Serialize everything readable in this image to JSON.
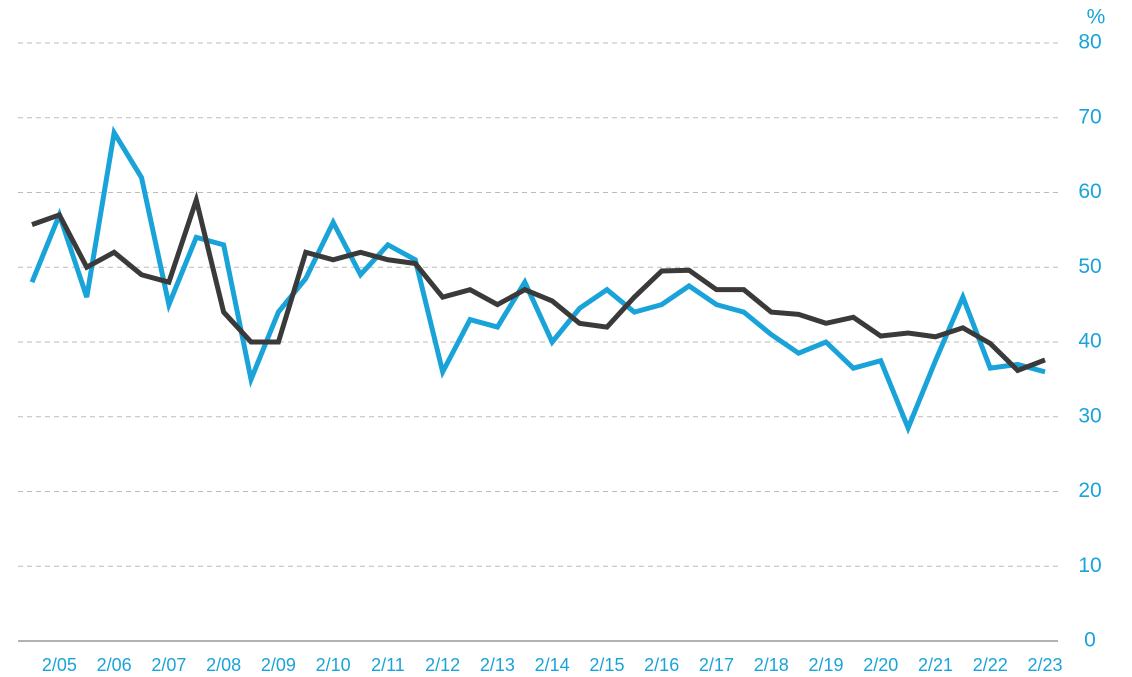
{
  "chart_data": {
    "type": "line",
    "y_unit": "%",
    "categories": [
      null,
      "2/05",
      null,
      "2/06",
      null,
      "2/07",
      null,
      "2/08",
      null,
      "2/09",
      null,
      "2/10",
      null,
      "2/11",
      null,
      "2/12",
      null,
      "2/13",
      null,
      "2/14",
      null,
      "2/15",
      null,
      "2/16",
      null,
      "2/17",
      null,
      "2/18",
      null,
      "2/19",
      null,
      "2/20",
      null,
      "2/21",
      null,
      "2/22",
      null,
      "2/23"
    ],
    "series": [
      {
        "color": "#1aa3d9",
        "values": [
          48,
          57,
          46,
          68,
          62,
          45,
          54,
          53,
          35,
          44,
          48.5,
          56,
          49,
          53,
          51,
          36,
          43,
          42,
          48,
          40,
          44.5,
          47,
          44,
          45,
          47.5,
          45,
          44,
          41,
          38.5,
          40,
          36.5,
          37.5,
          28.5,
          37.5,
          46,
          36.5,
          37,
          36
        ]
      },
      {
        "color": "#3a3a3a",
        "values": [
          55.7,
          57,
          50,
          52,
          49,
          48,
          59,
          44,
          40,
          40,
          52,
          51,
          52,
          51,
          50.5,
          46,
          47,
          45,
          47,
          45.5,
          42.5,
          42,
          46,
          49.5,
          49.6,
          47,
          47,
          44,
          43.7,
          42.5,
          43.3,
          40.8,
          41.2,
          40.7,
          41.9,
          39.8,
          36.2,
          37.6
        ]
      }
    ],
    "ylim": [
      0,
      80
    ],
    "yticks": [
      0,
      10,
      20,
      30,
      40,
      50,
      60,
      70,
      80
    ],
    "grid": true
  }
}
